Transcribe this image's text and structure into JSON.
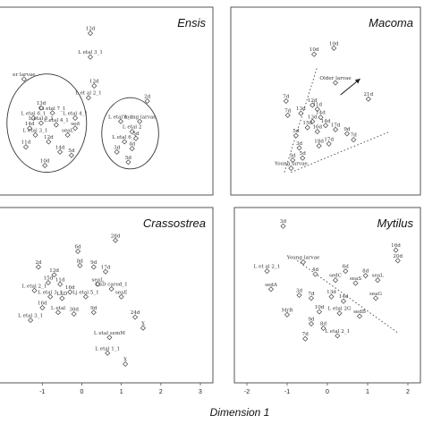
{
  "figure": {
    "xlabel": "Dimension 1"
  },
  "chart_data": [
    {
      "type": "scatter",
      "title": "Ensis",
      "xlim": [
        -2,
        3
      ],
      "ylim": [
        -2.2,
        2.6
      ],
      "xticks": [],
      "points": [
        {
          "x": 0.1,
          "y": 2.2,
          "label": "12d"
        },
        {
          "x": 0.1,
          "y": 1.5,
          "label": "L etal 3_1"
        },
        {
          "x": 0.2,
          "y": 0.65,
          "label": "12d"
        },
        {
          "x": 0.05,
          "y": 0.3,
          "label": "L et al 2_1"
        },
        {
          "x": -1.65,
          "y": 0.85,
          "label": "er larvae"
        },
        {
          "x": -1.2,
          "y": 0.0,
          "label": "13d"
        },
        {
          "x": -1.4,
          "y": -0.3,
          "label": "L etal 6_1"
        },
        {
          "x": -1.2,
          "y": -0.45,
          "label": "L etal 5_1"
        },
        {
          "x": -1.5,
          "y": -0.6,
          "label": "14d"
        },
        {
          "x": -1.35,
          "y": -0.8,
          "label": "L etal 3_1"
        },
        {
          "x": -0.8,
          "y": -0.5,
          "label": "L etal 4_1"
        },
        {
          "x": -0.9,
          "y": -0.15,
          "label": "Li etal 7_1"
        },
        {
          "x": -1.0,
          "y": -1.0,
          "label": "12d"
        },
        {
          "x": -0.5,
          "y": -0.8,
          "label": "seaL"
        },
        {
          "x": -0.3,
          "y": -0.6,
          "label": "sed"
        },
        {
          "x": -1.6,
          "y": -1.15,
          "label": "11d"
        },
        {
          "x": -0.7,
          "y": -1.3,
          "label": "14d"
        },
        {
          "x": -1.1,
          "y": -1.7,
          "label": "10d"
        },
        {
          "x": -0.4,
          "y": -1.4,
          "label": "5d"
        },
        {
          "x": -0.3,
          "y": -0.3,
          "label": "L etal 4_1"
        },
        {
          "x": 1.6,
          "y": 0.2,
          "label": "2d"
        },
        {
          "x": 1.4,
          "y": -0.4,
          "label": "Young larvae"
        },
        {
          "x": 0.9,
          "y": -0.4,
          "label": "L etal 1_1"
        },
        {
          "x": 1.2,
          "y": -0.7,
          "label": "L etal 2"
        },
        {
          "x": 1.0,
          "y": -1.0,
          "label": "L etal 6_1"
        },
        {
          "x": 1.3,
          "y": -0.9,
          "label": "5d"
        },
        {
          "x": 0.8,
          "y": -1.3,
          "label": "3d"
        },
        {
          "x": 1.2,
          "y": -1.2,
          "label": "4d"
        },
        {
          "x": 1.1,
          "y": -1.6,
          "label": "5d"
        }
      ],
      "ellipses": [
        {
          "cx": -1.05,
          "cy": -0.45,
          "rx": 1.05,
          "ry": 1.45
        },
        {
          "cx": 1.15,
          "cy": -0.75,
          "rx": 0.75,
          "ry": 1.05
        }
      ]
    },
    {
      "type": "scatter",
      "title": "Macoma",
      "xlim": [
        -2,
        3
      ],
      "ylim": [
        -1.6,
        2.4
      ],
      "points": [
        {
          "x": 0.15,
          "y": 1.55,
          "label": "10d"
        },
        {
          "x": 0.75,
          "y": 1.7,
          "label": "10d"
        },
        {
          "x": 0.8,
          "y": 0.85,
          "label": "Older larvae"
        },
        {
          "x": 1.8,
          "y": 0.45,
          "label": "21d"
        },
        {
          "x": -0.7,
          "y": 0.4,
          "label": "7d"
        },
        {
          "x": -0.65,
          "y": 0.05,
          "label": "7d"
        },
        {
          "x": -0.25,
          "y": 0.1,
          "label": "13d"
        },
        {
          "x": 0.1,
          "y": 0.3,
          "label": "12d"
        },
        {
          "x": 0.25,
          "y": 0.2,
          "label": "11d"
        },
        {
          "x": 0.35,
          "y": 0.0,
          "label": "14d"
        },
        {
          "x": 0.1,
          "y": -0.1,
          "label": "13d"
        },
        {
          "x": -0.05,
          "y": -0.25,
          "label": "15d"
        },
        {
          "x": 0.25,
          "y": -0.35,
          "label": "16d"
        },
        {
          "x": 0.5,
          "y": -0.2,
          "label": "14d"
        },
        {
          "x": 0.8,
          "y": -0.3,
          "label": "17d"
        },
        {
          "x": 1.15,
          "y": -0.4,
          "label": "9d"
        },
        {
          "x": 1.35,
          "y": -0.55,
          "label": "7d"
        },
        {
          "x": 0.6,
          "y": -0.65,
          "label": "17d"
        },
        {
          "x": 0.3,
          "y": -0.7,
          "label": "18d"
        },
        {
          "x": -0.4,
          "y": -0.45,
          "label": "5d"
        },
        {
          "x": -0.3,
          "y": -0.75,
          "label": "3d"
        },
        {
          "x": -0.2,
          "y": -1.0,
          "label": "5d"
        },
        {
          "x": -0.5,
          "y": -1.05,
          "label": "3d"
        },
        {
          "x": -0.55,
          "y": -1.25,
          "label": "Young larvae"
        }
      ],
      "annotations": [
        {
          "text": "Older larvae",
          "arrow_from": [
            0.95,
            0.55
          ],
          "arrow_to": [
            1.55,
            0.95
          ]
        },
        {
          "text": "Young larvae"
        }
      ],
      "dotted_lines": [
        {
          "from": [
            -0.75,
            -1.35
          ],
          "to": [
            0.25,
            1.25
          ]
        },
        {
          "from": [
            -0.55,
            -1.35
          ],
          "to": [
            2.45,
            -0.35
          ]
        }
      ]
    },
    {
      "type": "scatter",
      "title": "Crassostrea",
      "xlim": [
        -1.8,
        3
      ],
      "ylim": [
        -2.4,
        2.4
      ],
      "xticks": [
        -1,
        0,
        1,
        2,
        3
      ],
      "points": [
        {
          "x": 0.85,
          "y": 1.75,
          "label": "28d"
        },
        {
          "x": -0.1,
          "y": 1.4,
          "label": "6d"
        },
        {
          "x": -0.05,
          "y": 0.95,
          "label": "8d"
        },
        {
          "x": 0.3,
          "y": 0.9,
          "label": "9d"
        },
        {
          "x": 0.6,
          "y": 0.75,
          "label": "17d"
        },
        {
          "x": -1.1,
          "y": 0.9,
          "label": "2d"
        },
        {
          "x": -0.7,
          "y": 0.65,
          "label": "13d"
        },
        {
          "x": -0.85,
          "y": 0.4,
          "label": "15d"
        },
        {
          "x": -0.55,
          "y": 0.35,
          "label": "11d"
        },
        {
          "x": -1.2,
          "y": 0.15,
          "label": "L etal 2_1"
        },
        {
          "x": -0.3,
          "y": 0.1,
          "label": "16d"
        },
        {
          "x": -0.8,
          "y": -0.05,
          "label": "L etal 3_1"
        },
        {
          "x": -0.5,
          "y": -0.1,
          "label": "LSD"
        },
        {
          "x": 0.1,
          "y": -0.05,
          "label": "Lj etal 5_1"
        },
        {
          "x": 0.4,
          "y": 0.35,
          "label": "seaL"
        },
        {
          "x": 0.75,
          "y": 0.2,
          "label": "LSD carod_1"
        },
        {
          "x": 1.0,
          "y": -0.05,
          "label": "seaE"
        },
        {
          "x": -1.0,
          "y": -0.4,
          "label": "16d"
        },
        {
          "x": -0.6,
          "y": -0.55,
          "label": "L etal"
        },
        {
          "x": -0.2,
          "y": -0.6,
          "label": "30d"
        },
        {
          "x": 0.3,
          "y": -0.55,
          "label": "9d"
        },
        {
          "x": -1.3,
          "y": -0.8,
          "label": "L etal 3_1"
        },
        {
          "x": 1.35,
          "y": -0.7,
          "label": "24d"
        },
        {
          "x": 1.55,
          "y": -1.05,
          "label": "X"
        },
        {
          "x": 0.7,
          "y": -1.35,
          "label": "L etal semM"
        },
        {
          "x": 0.65,
          "y": -1.85,
          "label": "L etal 1_1"
        },
        {
          "x": 1.1,
          "y": -2.2,
          "label": "X"
        }
      ]
    },
    {
      "type": "scatter",
      "title": "Mytilus",
      "xlim": [
        -2,
        2
      ],
      "ylim": [
        -2.6,
        2.4
      ],
      "xticks": [
        -2,
        -1,
        0,
        1,
        2
      ],
      "points": [
        {
          "x": -1.1,
          "y": 2.2,
          "label": "3d"
        },
        {
          "x": 1.7,
          "y": 1.4,
          "label": "16d"
        },
        {
          "x": 1.75,
          "y": 1.05,
          "label": "20d"
        },
        {
          "x": -0.6,
          "y": 1.0,
          "label": "Young larvae"
        },
        {
          "x": -1.5,
          "y": 0.7,
          "label": "L et al 2_1"
        },
        {
          "x": -0.3,
          "y": 0.6,
          "label": "4d"
        },
        {
          "x": 0.45,
          "y": 0.7,
          "label": "6d"
        },
        {
          "x": 0.95,
          "y": 0.55,
          "label": "8d"
        },
        {
          "x": 1.25,
          "y": 0.4,
          "label": "seaL"
        },
        {
          "x": 0.2,
          "y": 0.4,
          "label": "sedC"
        },
        {
          "x": 0.7,
          "y": 0.3,
          "label": "seaS"
        },
        {
          "x": -1.4,
          "y": 0.1,
          "label": "sedA"
        },
        {
          "x": -0.7,
          "y": -0.1,
          "label": "3d"
        },
        {
          "x": -0.4,
          "y": -0.2,
          "label": "7d"
        },
        {
          "x": 0.1,
          "y": -0.15,
          "label": "13d"
        },
        {
          "x": 0.4,
          "y": -0.3,
          "label": "14d"
        },
        {
          "x": 1.2,
          "y": -0.2,
          "label": "seaG"
        },
        {
          "x": -1.0,
          "y": -0.75,
          "label": "MrR"
        },
        {
          "x": -0.2,
          "y": -0.65,
          "label": "10d"
        },
        {
          "x": 0.3,
          "y": -0.7,
          "label": "L etal 2G"
        },
        {
          "x": 0.8,
          "y": -0.8,
          "label": "sedB"
        },
        {
          "x": -0.4,
          "y": -1.05,
          "label": "9d"
        },
        {
          "x": -0.1,
          "y": -1.2,
          "label": "8d"
        },
        {
          "x": -0.55,
          "y": -1.55,
          "label": "7d"
        },
        {
          "x": 0.25,
          "y": -1.45,
          "label": "L etal 2_1"
        }
      ],
      "dotted_lines": [
        {
          "from": [
            -0.75,
            1.05
          ],
          "to": [
            1.75,
            -1.35
          ]
        }
      ]
    }
  ]
}
